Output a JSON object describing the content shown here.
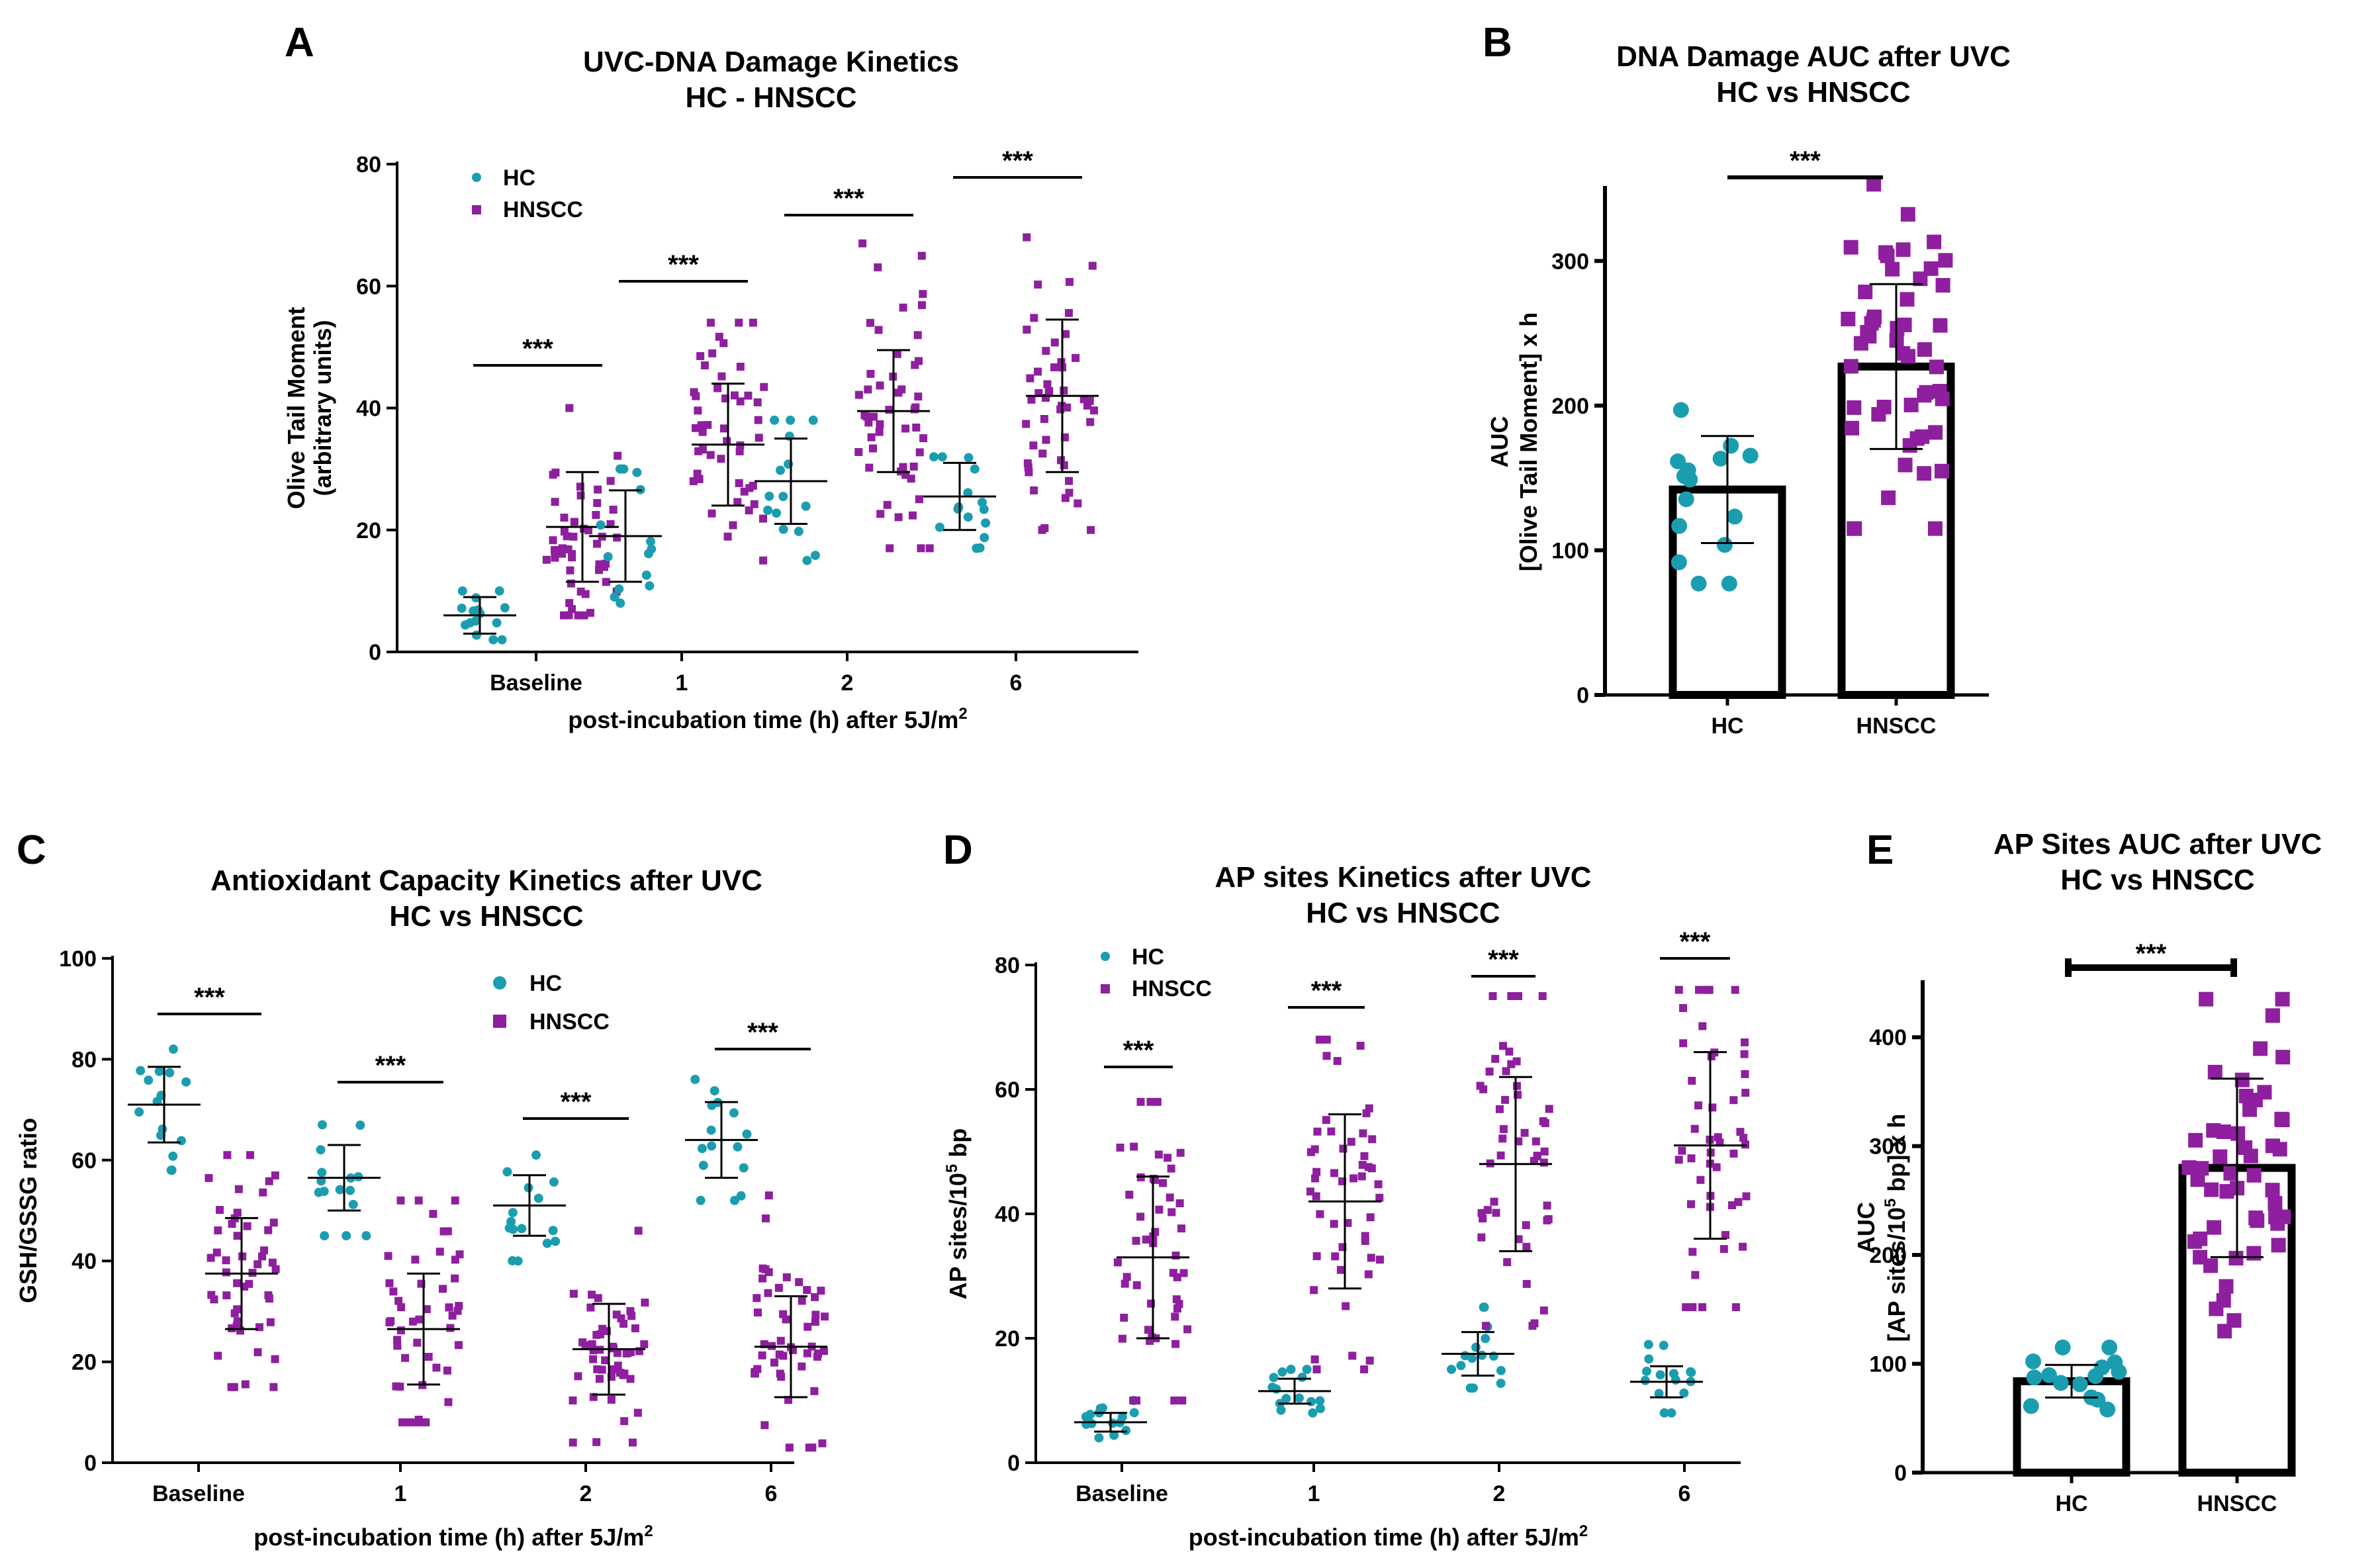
{
  "colors": {
    "hc": "#1b9db0",
    "hnscc": "#8e1f9e",
    "axis": "#000000"
  },
  "chart_data": [
    {
      "id": "A",
      "type": "scatter",
      "letter": "A",
      "title": [
        "UVC-DNA Damage Kinetics",
        "HC - HNSCC"
      ],
      "ylabel": [
        "Olive Tail Moment",
        "(arbitrary units)"
      ],
      "xlabel": "post-incubation time (h) after 5J/m",
      "xlabel_sup": "2",
      "categories": [
        "Baseline",
        "1",
        "2",
        "6"
      ],
      "ylim": [
        0,
        80
      ],
      "yticks": [
        "0",
        "20",
        "40",
        "60",
        "80"
      ],
      "legend": [
        "HC",
        "HNSCC"
      ],
      "significance": [
        "***",
        "***",
        "***",
        "***"
      ],
      "series": [
        {
          "name": "HC",
          "mean": [
            6,
            19,
            28,
            25.5
          ],
          "sd": [
            3,
            7.5,
            7,
            5.5
          ],
          "min": [
            2,
            8,
            15,
            17
          ],
          "max": [
            10,
            30,
            38,
            32
          ],
          "n": 15
        },
        {
          "name": "HNSCC",
          "mean": [
            20.5,
            34,
            39.5,
            42
          ],
          "sd": [
            9,
            10,
            10,
            12.5
          ],
          "min": [
            6,
            15,
            17,
            20
          ],
          "max": [
            40,
            54,
            67,
            68
          ],
          "n": 50
        }
      ]
    },
    {
      "id": "B",
      "type": "bar",
      "letter": "B",
      "title": [
        "DNA Damage AUC after UVC",
        "HC vs HNSCC"
      ],
      "ylabel": [
        "AUC",
        "[Olive Tail Moment] x h"
      ],
      "categories": [
        "HC",
        "HNSCC"
      ],
      "ylim": [
        0,
        350
      ],
      "yticks": [
        "0",
        "100",
        "200",
        "300"
      ],
      "values": [
        142,
        227
      ],
      "sd": [
        37,
        57
      ],
      "min": [
        77,
        115
      ],
      "max": [
        197,
        353
      ],
      "significance": "***"
    },
    {
      "id": "C",
      "type": "scatter",
      "letter": "C",
      "title": [
        "Antioxidant Capacity Kinetics after UVC",
        "HC vs HNSCC"
      ],
      "ylabel": [
        "GSH/GSSG ratio"
      ],
      "xlabel": "post-incubation time (h) after 5J/m",
      "xlabel_sup": "2",
      "categories": [
        "Baseline",
        "1",
        "2",
        "6"
      ],
      "ylim": [
        0,
        100
      ],
      "yticks": [
        "0",
        "20",
        "40",
        "60",
        "80",
        "100"
      ],
      "legend": [
        "HC",
        "HNSCC"
      ],
      "significance": [
        "***",
        "***",
        "***",
        "***"
      ],
      "series": [
        {
          "name": "HC",
          "mean": [
            71,
            56.5,
            51,
            64
          ],
          "sd": [
            7.5,
            6.5,
            6,
            7.5
          ],
          "min": [
            58,
            45,
            40,
            52
          ],
          "max": [
            82,
            67,
            61,
            76
          ],
          "n": 15
        },
        {
          "name": "HNSCC",
          "mean": [
            37.5,
            26.5,
            22.5,
            23
          ],
          "sd": [
            11,
            11,
            9,
            10
          ],
          "min": [
            15,
            8,
            4,
            3
          ],
          "max": [
            61,
            52,
            46,
            53
          ],
          "n": 50
        }
      ]
    },
    {
      "id": "D",
      "type": "scatter",
      "letter": "D",
      "title": [
        "AP sites Kinetics after UVC",
        "HC vs HNSCC"
      ],
      "ylabel": [
        "AP sites/10",
        "5",
        " bp"
      ],
      "xlabel": "post-incubation time (h) after 5J/m",
      "xlabel_sup": "2",
      "categories": [
        "Baseline",
        "1",
        "2",
        "6"
      ],
      "ylim": [
        0,
        80
      ],
      "yticks": [
        "0",
        "20",
        "40",
        "60",
        "80"
      ],
      "legend": [
        "HC",
        "HNSCC"
      ],
      "significance": [
        "***",
        "***",
        "***",
        "***"
      ],
      "series": [
        {
          "name": "HC",
          "mean": [
            6.5,
            11.5,
            17.5,
            13
          ],
          "sd": [
            1.5,
            2,
            3.5,
            2.5
          ],
          "min": [
            4,
            8,
            12,
            8
          ],
          "max": [
            10,
            15,
            25,
            19
          ],
          "n": 15
        },
        {
          "name": "HNSCC",
          "mean": [
            33,
            42,
            48,
            51
          ],
          "sd": [
            13,
            14,
            14,
            15
          ],
          "min": [
            10,
            15,
            22,
            25
          ],
          "max": [
            58,
            68,
            75,
            76
          ],
          "n": 50
        }
      ]
    },
    {
      "id": "E",
      "type": "bar",
      "letter": "E",
      "title": [
        "AP Sites AUC after UVC",
        "HC vs HNSCC"
      ],
      "ylabel": [
        "AUC",
        "[AP sites/10",
        "5",
        " bp] x h"
      ],
      "categories": [
        "HC",
        "HNSCC"
      ],
      "ylim": [
        0,
        450
      ],
      "yticks": [
        "0",
        "100",
        "200",
        "300",
        "400"
      ],
      "values": [
        84,
        280
      ],
      "sd": [
        15,
        82
      ],
      "min": [
        58,
        130
      ],
      "max": [
        115,
        435
      ],
      "significance": "***"
    }
  ]
}
